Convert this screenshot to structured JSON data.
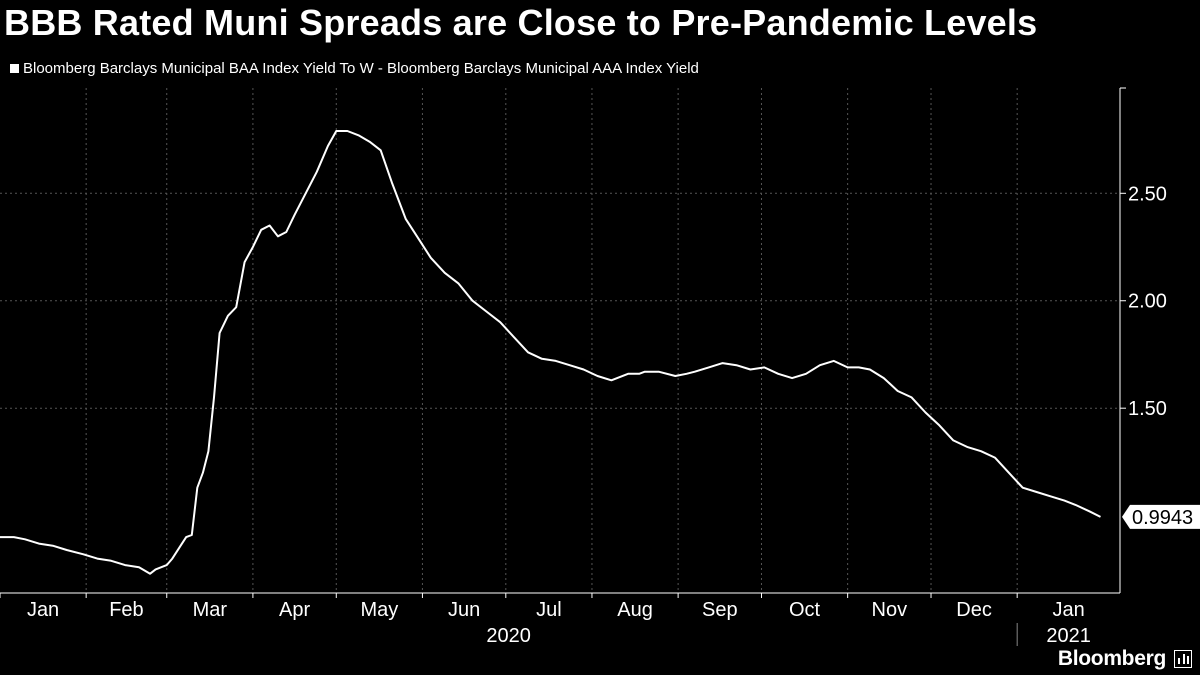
{
  "chart_data": {
    "type": "line",
    "title": "BBB Rated Muni Spreads are Close to Pre-Pandemic Levels",
    "series": [
      {
        "name": "Bloomberg Barclays Municipal BAA Index Yield To W - Bloomberg Barclays Municipal AAA Index Yield",
        "x": [
          "2020-01-01",
          "2020-01-06",
          "2020-01-10",
          "2020-01-15",
          "2020-01-20",
          "2020-01-25",
          "2020-01-31",
          "2020-02-05",
          "2020-02-10",
          "2020-02-15",
          "2020-02-20",
          "2020-02-24",
          "2020-02-26",
          "2020-03-01",
          "2020-03-03",
          "2020-03-06",
          "2020-03-08",
          "2020-03-10",
          "2020-03-12",
          "2020-03-14",
          "2020-03-16",
          "2020-03-18",
          "2020-03-20",
          "2020-03-23",
          "2020-03-26",
          "2020-03-29",
          "2020-04-01",
          "2020-04-04",
          "2020-04-07",
          "2020-04-10",
          "2020-04-13",
          "2020-04-16",
          "2020-04-20",
          "2020-04-24",
          "2020-04-28",
          "2020-05-01",
          "2020-05-05",
          "2020-05-09",
          "2020-05-13",
          "2020-05-17",
          "2020-05-21",
          "2020-05-26",
          "2020-05-31",
          "2020-06-04",
          "2020-06-09",
          "2020-06-14",
          "2020-06-19",
          "2020-06-24",
          "2020-06-29",
          "2020-07-04",
          "2020-07-09",
          "2020-07-14",
          "2020-07-19",
          "2020-07-24",
          "2020-07-29",
          "2020-08-03",
          "2020-08-08",
          "2020-08-14",
          "2020-08-18",
          "2020-08-20",
          "2020-08-25",
          "2020-08-31",
          "2020-09-04",
          "2020-09-07",
          "2020-09-12",
          "2020-09-17",
          "2020-09-22",
          "2020-09-27",
          "2020-10-02",
          "2020-10-07",
          "2020-10-12",
          "2020-10-17",
          "2020-10-22",
          "2020-10-27",
          "2020-11-01",
          "2020-11-05",
          "2020-11-09",
          "2020-11-14",
          "2020-11-19",
          "2020-11-24",
          "2020-11-29",
          "2020-12-04",
          "2020-12-09",
          "2020-12-14",
          "2020-12-19",
          "2020-12-24",
          "2020-12-29",
          "2021-01-03",
          "2021-01-08",
          "2021-01-13",
          "2021-01-18",
          "2021-01-22",
          "2021-01-27",
          "2021-01-31"
        ],
        "values": [
          0.9,
          0.9,
          0.89,
          0.87,
          0.86,
          0.84,
          0.82,
          0.8,
          0.79,
          0.77,
          0.76,
          0.73,
          0.75,
          0.77,
          0.8,
          0.86,
          0.9,
          0.91,
          1.13,
          1.2,
          1.3,
          1.55,
          1.85,
          1.93,
          1.97,
          2.18,
          2.25,
          2.33,
          2.35,
          2.3,
          2.32,
          2.4,
          2.5,
          2.6,
          2.72,
          2.79,
          2.79,
          2.77,
          2.74,
          2.7,
          2.55,
          2.38,
          2.28,
          2.2,
          2.13,
          2.08,
          2.0,
          1.95,
          1.9,
          1.83,
          1.76,
          1.73,
          1.72,
          1.7,
          1.68,
          1.65,
          1.63,
          1.66,
          1.66,
          1.67,
          1.67,
          1.65,
          1.66,
          1.67,
          1.69,
          1.71,
          1.7,
          1.68,
          1.69,
          1.66,
          1.64,
          1.66,
          1.7,
          1.72,
          1.69,
          1.69,
          1.68,
          1.64,
          1.58,
          1.55,
          1.48,
          1.42,
          1.35,
          1.32,
          1.3,
          1.27,
          1.2,
          1.13,
          1.11,
          1.09,
          1.07,
          1.05,
          1.02,
          0.9943
        ]
      }
    ],
    "last_value_label": "0.9943",
    "y_ticks": [
      "1.50",
      "2.00",
      "2.50"
    ],
    "y_tick_values": [
      1.5,
      2.0,
      2.5
    ],
    "ylim": [
      0.64,
      2.99
    ],
    "x_range": [
      "2020-01-01",
      "2021-02-07"
    ],
    "x_tick_labels": [
      "Jan",
      "Feb",
      "Mar",
      "Apr",
      "May",
      "Jun",
      "Jul",
      "Aug",
      "Sep",
      "Oct",
      "Nov",
      "Dec",
      "Jan"
    ],
    "x_tick_dates": [
      "2020-01-01",
      "2020-02-01",
      "2020-03-01",
      "2020-04-01",
      "2020-05-01",
      "2020-06-01",
      "2020-07-01",
      "2020-08-01",
      "2020-09-01",
      "2020-10-01",
      "2020-11-01",
      "2020-12-01",
      "2021-01-01"
    ],
    "year_labels": [
      {
        "label": "2020",
        "start": "2020-01-01",
        "end": "2021-01-01"
      },
      {
        "label": "2021",
        "start": "2021-01-01",
        "end": "2021-02-07"
      }
    ],
    "grid": true,
    "legend": "top-left"
  },
  "brand": "Bloomberg",
  "colors": {
    "background": "#000000",
    "line": "#ffffff",
    "grid": "#555555"
  }
}
